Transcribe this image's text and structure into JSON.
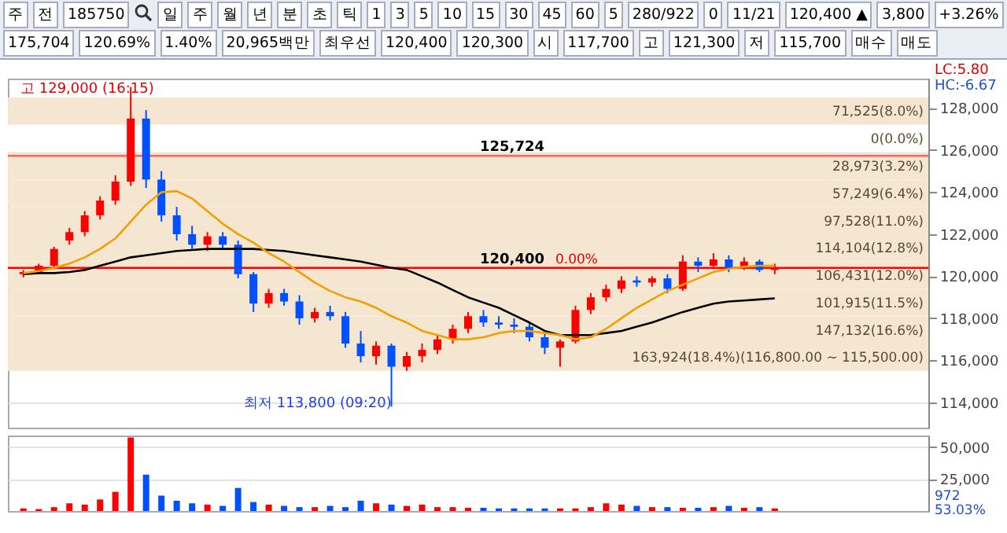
{
  "chart_data": [
    {
      "type": "candlestick",
      "categories": [
        null,
        null,
        null,
        null,
        null,
        null,
        null,
        null,
        null,
        null,
        null,
        null,
        null,
        null,
        null,
        null,
        null,
        null,
        null,
        null,
        null,
        null,
        null,
        null,
        null,
        null,
        null,
        null,
        null,
        null,
        null,
        null,
        null,
        null,
        null,
        null,
        null,
        null,
        null,
        null,
        null,
        null,
        null,
        null,
        null,
        null,
        null,
        null,
        null,
        null,
        null,
        null,
        null,
        null,
        null,
        null,
        null,
        null,
        null
      ],
      "ohlc": [
        [
          120100,
          120300,
          119950,
          120200
        ],
        [
          120150,
          120600,
          120100,
          120500
        ],
        [
          120500,
          121400,
          120400,
          121300
        ],
        [
          121700,
          122300,
          121500,
          122100
        ],
        [
          122100,
          123100,
          121900,
          122900
        ],
        [
          122900,
          123800,
          122700,
          123600
        ],
        [
          123600,
          124800,
          123400,
          124500
        ],
        [
          124500,
          129000,
          124300,
          127500
        ],
        [
          127500,
          127900,
          124200,
          124600
        ],
        [
          124600,
          125000,
          122600,
          122900
        ],
        [
          122900,
          123300,
          121700,
          122000
        ],
        [
          122000,
          122400,
          121300,
          121500
        ],
        [
          121500,
          122100,
          121200,
          121900
        ],
        [
          121900,
          122100,
          121300,
          121500
        ],
        [
          121500,
          121700,
          119900,
          120100
        ],
        [
          120100,
          120200,
          118300,
          118700
        ],
        [
          118700,
          119400,
          118500,
          119200
        ],
        [
          119200,
          119400,
          118600,
          118800
        ],
        [
          118800,
          119100,
          117700,
          118000
        ],
        [
          118000,
          118500,
          117800,
          118300
        ],
        [
          118300,
          118600,
          117900,
          118100
        ],
        [
          118100,
          118300,
          116600,
          116800
        ],
        [
          116800,
          117400,
          115900,
          116200
        ],
        [
          116200,
          116900,
          115800,
          116700
        ],
        [
          116700,
          116800,
          113800,
          115700
        ],
        [
          115700,
          116400,
          115500,
          116200
        ],
        [
          116200,
          116800,
          115900,
          116500
        ],
        [
          116500,
          117200,
          116300,
          117000
        ],
        [
          117000,
          117700,
          116800,
          117500
        ],
        [
          117500,
          118300,
          117300,
          118100
        ],
        [
          118100,
          118400,
          117600,
          117800
        ],
        [
          117800,
          118100,
          117500,
          117700
        ],
        [
          117700,
          118000,
          117300,
          117600
        ],
        [
          117600,
          117800,
          116900,
          117100
        ],
        [
          117100,
          117300,
          116300,
          116600
        ],
        [
          116600,
          117000,
          115700,
          116900
        ],
        [
          116900,
          118600,
          116800,
          118400
        ],
        [
          118400,
          119200,
          118200,
          119000
        ],
        [
          119000,
          119600,
          118800,
          119400
        ],
        [
          119400,
          120000,
          119200,
          119800
        ],
        [
          119800,
          120000,
          119500,
          119700
        ],
        [
          119700,
          120000,
          119500,
          119900
        ],
        [
          119900,
          120100,
          119200,
          119400
        ],
        [
          119400,
          121000,
          119300,
          120700
        ],
        [
          120700,
          120900,
          120200,
          120500
        ],
        [
          120500,
          121100,
          120400,
          120800
        ],
        [
          120800,
          121000,
          120200,
          120400
        ],
        [
          120400,
          120900,
          120300,
          120700
        ],
        [
          120700,
          120800,
          120200,
          120300
        ],
        [
          120300,
          120600,
          120100,
          120400
        ],
        null,
        null,
        null,
        null,
        null,
        null,
        null,
        null,
        null
      ],
      "series": [
        {
          "type": "line",
          "color": "#000000",
          "values": [
            120100,
            120150,
            120150,
            120200,
            120300,
            120500,
            120700,
            120900,
            121000,
            121100,
            121200,
            121250,
            121300,
            121300,
            121300,
            121300,
            121250,
            121200,
            121100,
            121000,
            120900,
            120800,
            120700,
            120550,
            120400,
            120300,
            120000,
            119700,
            119350,
            119000,
            118750,
            118500,
            118150,
            117800,
            117400,
            117200,
            117200,
            117200,
            117300,
            117400,
            117600,
            117800,
            118050,
            118300,
            118500,
            118700,
            118800,
            118850,
            118900,
            118950,
            null,
            null,
            null,
            null,
            null,
            null,
            null,
            null,
            null
          ]
        },
        {
          "type": "line",
          "color": "#f0a000",
          "values": [
            120150,
            120250,
            120400,
            120600,
            120900,
            121300,
            121800,
            122600,
            123400,
            124000,
            124050,
            123700,
            123100,
            122500,
            122000,
            121600,
            121100,
            120700,
            120200,
            119700,
            119300,
            119000,
            118800,
            118500,
            118100,
            117800,
            117400,
            117200,
            117000,
            117000,
            117100,
            117300,
            117400,
            117400,
            117300,
            117200,
            117000,
            117100,
            117500,
            118000,
            118500,
            118900,
            119300,
            119600,
            119900,
            120200,
            120350,
            120450,
            120500,
            120500,
            null,
            null,
            null,
            null,
            null,
            null,
            null,
            null,
            null
          ]
        }
      ],
      "ylim": [
        112800,
        129400
      ],
      "yticks": [
        {
          "value": 114000,
          "label": "114,000"
        },
        {
          "value": 116000,
          "label": "116,000"
        },
        {
          "value": 118000,
          "label": "118,000"
        },
        {
          "value": 120000,
          "label": "120,000"
        },
        {
          "value": 122000,
          "label": "122,000"
        },
        {
          "value": 124000,
          "label": "124,000"
        },
        {
          "value": 126000,
          "label": "126,000"
        },
        {
          "value": 128000,
          "label": "128,000"
        }
      ],
      "grid": "y",
      "tick_labels": "y",
      "bands": [
        {
          "axis": "y",
          "from": 127200,
          "to": 128500,
          "label": "71,525(8.0%)",
          "color": "#f5e6d2"
        },
        {
          "axis": "y",
          "from": 125900,
          "to": 127200,
          "label": "0(0.0%)",
          "color": "#ffffff"
        },
        {
          "axis": "y",
          "from": 124600,
          "to": 125900,
          "label": "28,973(3.2%)",
          "color": "#f5e6d2"
        },
        {
          "axis": "y",
          "from": 123300,
          "to": 124600,
          "label": "57,249(6.4%)",
          "color": "#f5e6d2"
        },
        {
          "axis": "y",
          "from": 122000,
          "to": 123300,
          "label": "97,528(11.0%)",
          "color": "#f5e6d2"
        },
        {
          "axis": "y",
          "from": 120700,
          "to": 122000,
          "label": "114,104(12.8%)",
          "color": "#f5e6d2"
        },
        {
          "axis": "y",
          "from": 119400,
          "to": 120700,
          "label": "106,431(12.0%)",
          "color": "#f5e6d2"
        },
        {
          "axis": "y",
          "from": 118100,
          "to": 119400,
          "label": "101,915(11.5%)",
          "color": "#f5e6d2"
        },
        {
          "axis": "y",
          "from": 116800,
          "to": 118100,
          "label": "147,132(16.6%)",
          "color": "#f5e6d2"
        },
        {
          "axis": "y",
          "from": 115500,
          "to": 116800,
          "label": "163,924(18.4%)(116,800.00 ~ 115,500.00)",
          "color": "#f5e6d2"
        }
      ],
      "ref_lines": [
        {
          "axis": "y",
          "value": 125724,
          "label": "125,724",
          "color": "#ff6060"
        },
        {
          "axis": "y",
          "value": 120400,
          "label": "120,400",
          "color": "#ff0000"
        }
      ],
      "annotations": [
        "고 129,000 (16:15)",
        "최저 113,800 (09:20)",
        "LC:5.80",
        "HC:-6.67",
        "0.00%",
        "주",
        "전",
        "185750",
        "일",
        "주",
        "월",
        "년",
        "분",
        "초",
        "틱",
        "1",
        "3",
        "5",
        "10",
        "15",
        "30",
        "45",
        "60",
        "5",
        "280/922",
        "0",
        "11/21",
        "120,400 ▲",
        "3,800",
        "+3.26%",
        "175,704",
        "120.69%",
        "1.40%",
        "20,965백만",
        "최우선",
        "120,400",
        "120,300",
        "시",
        "117,700",
        "고",
        "121,300",
        "저",
        "115,700",
        "매수",
        "매도"
      ]
    },
    {
      "type": "bar",
      "categories": [
        null,
        null,
        null,
        null,
        null,
        null,
        null,
        null,
        null,
        null,
        null,
        null,
        null,
        null,
        null,
        null,
        null,
        null,
        null,
        null,
        null,
        null,
        null,
        null,
        null,
        null,
        null,
        null,
        null,
        null,
        null,
        null,
        null,
        null,
        null,
        null,
        null,
        null,
        null,
        null,
        null,
        null,
        null,
        null,
        null,
        null,
        null,
        null,
        null,
        null,
        null,
        null,
        null,
        null,
        null,
        null,
        null,
        null,
        null
      ],
      "values": [
        2000,
        1500,
        3000,
        6000,
        5000,
        9000,
        15000,
        57500,
        28400,
        12000,
        8000,
        6000,
        5000,
        4000,
        18000,
        7000,
        5000,
        4000,
        3000,
        3000,
        4000,
        3000,
        8000,
        6000,
        5000,
        4000,
        5000,
        3000,
        3000,
        2500,
        2500,
        2000,
        2000,
        2000,
        2000,
        2000,
        2000,
        3000,
        6000,
        5000,
        4000,
        3000,
        3000,
        2500,
        2500,
        3000,
        4000,
        2500,
        3000,
        2000,
        null,
        null,
        null,
        null,
        null,
        null,
        null,
        null,
        null
      ],
      "colors": [
        "#ff0000",
        "#ff0000",
        "#ff0000",
        "#ff0000",
        "#ff0000",
        "#ff0000",
        "#ff0000",
        "#ff0000",
        "#0050ff",
        "#0050ff",
        "#0050ff",
        "#0050ff",
        "#ff0000",
        "#0050ff",
        "#0050ff",
        "#0050ff",
        "#ff0000",
        "#0050ff",
        "#0050ff",
        "#ff0000",
        "#0050ff",
        "#0050ff",
        "#0050ff",
        "#ff0000",
        "#0050ff",
        "#ff0000",
        "#ff0000",
        "#ff0000",
        "#ff0000",
        "#ff0000",
        "#0050ff",
        "#0050ff",
        "#0050ff",
        "#0050ff",
        "#0050ff",
        "#ff0000",
        "#ff0000",
        "#ff0000",
        "#ff0000",
        "#ff0000",
        "#0050ff",
        "#ff0000",
        "#0050ff",
        "#ff0000",
        "#0050ff",
        "#ff0000",
        "#0050ff",
        "#ff0000",
        "#0050ff",
        "#ff0000",
        null,
        null,
        null,
        null,
        null,
        null,
        null,
        null,
        null
      ],
      "ylim": [
        0,
        59000
      ],
      "yticks": [
        {
          "value": 25000,
          "label": "25,000"
        },
        {
          "value": 50000,
          "label": "50,000"
        }
      ],
      "grid": "y",
      "tick_labels": "y",
      "annotations": [
        "972",
        "53.03%"
      ]
    }
  ]
}
